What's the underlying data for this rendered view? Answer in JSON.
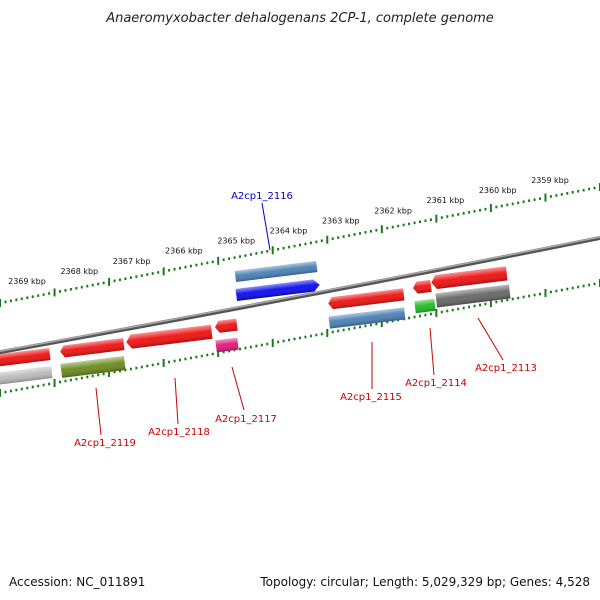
{
  "title": "Anaeromyxobacter dehalogenans 2CP-1, complete genome",
  "footer": {
    "accession": "Accession: NC_011891",
    "stats": "Topology: circular; Length: 5,029,329 bp; Genes: 4,528"
  },
  "kbp_labels": [
    "2369 kbp",
    "2368 kbp",
    "2367 kbp",
    "2366 kbp",
    "2365 kbp",
    "2364 kbp",
    "2363 kbp",
    "2362 kbp",
    "2361 kbp",
    "2360 kbp",
    "2359 kbp"
  ],
  "gene_labels": [
    "A2cp1_2116",
    "A2cp1_2119",
    "A2cp1_2118",
    "A2cp1_2117",
    "A2cp1_2115",
    "A2cp1_2114",
    "A2cp1_2113"
  ],
  "colors": {
    "backbone": "#777777",
    "ruler": "#1a7a1a",
    "label_blue": "#0000cc",
    "label_red": "#cc0000",
    "red": "#ee1111",
    "steelblue": "#4a7fb5",
    "blue": "#0a0aee",
    "olive": "#6b8a1e",
    "gray": "#666666",
    "lightgray": "#bbbbbb",
    "magenta": "#e0187a",
    "green": "#22bb22"
  }
}
